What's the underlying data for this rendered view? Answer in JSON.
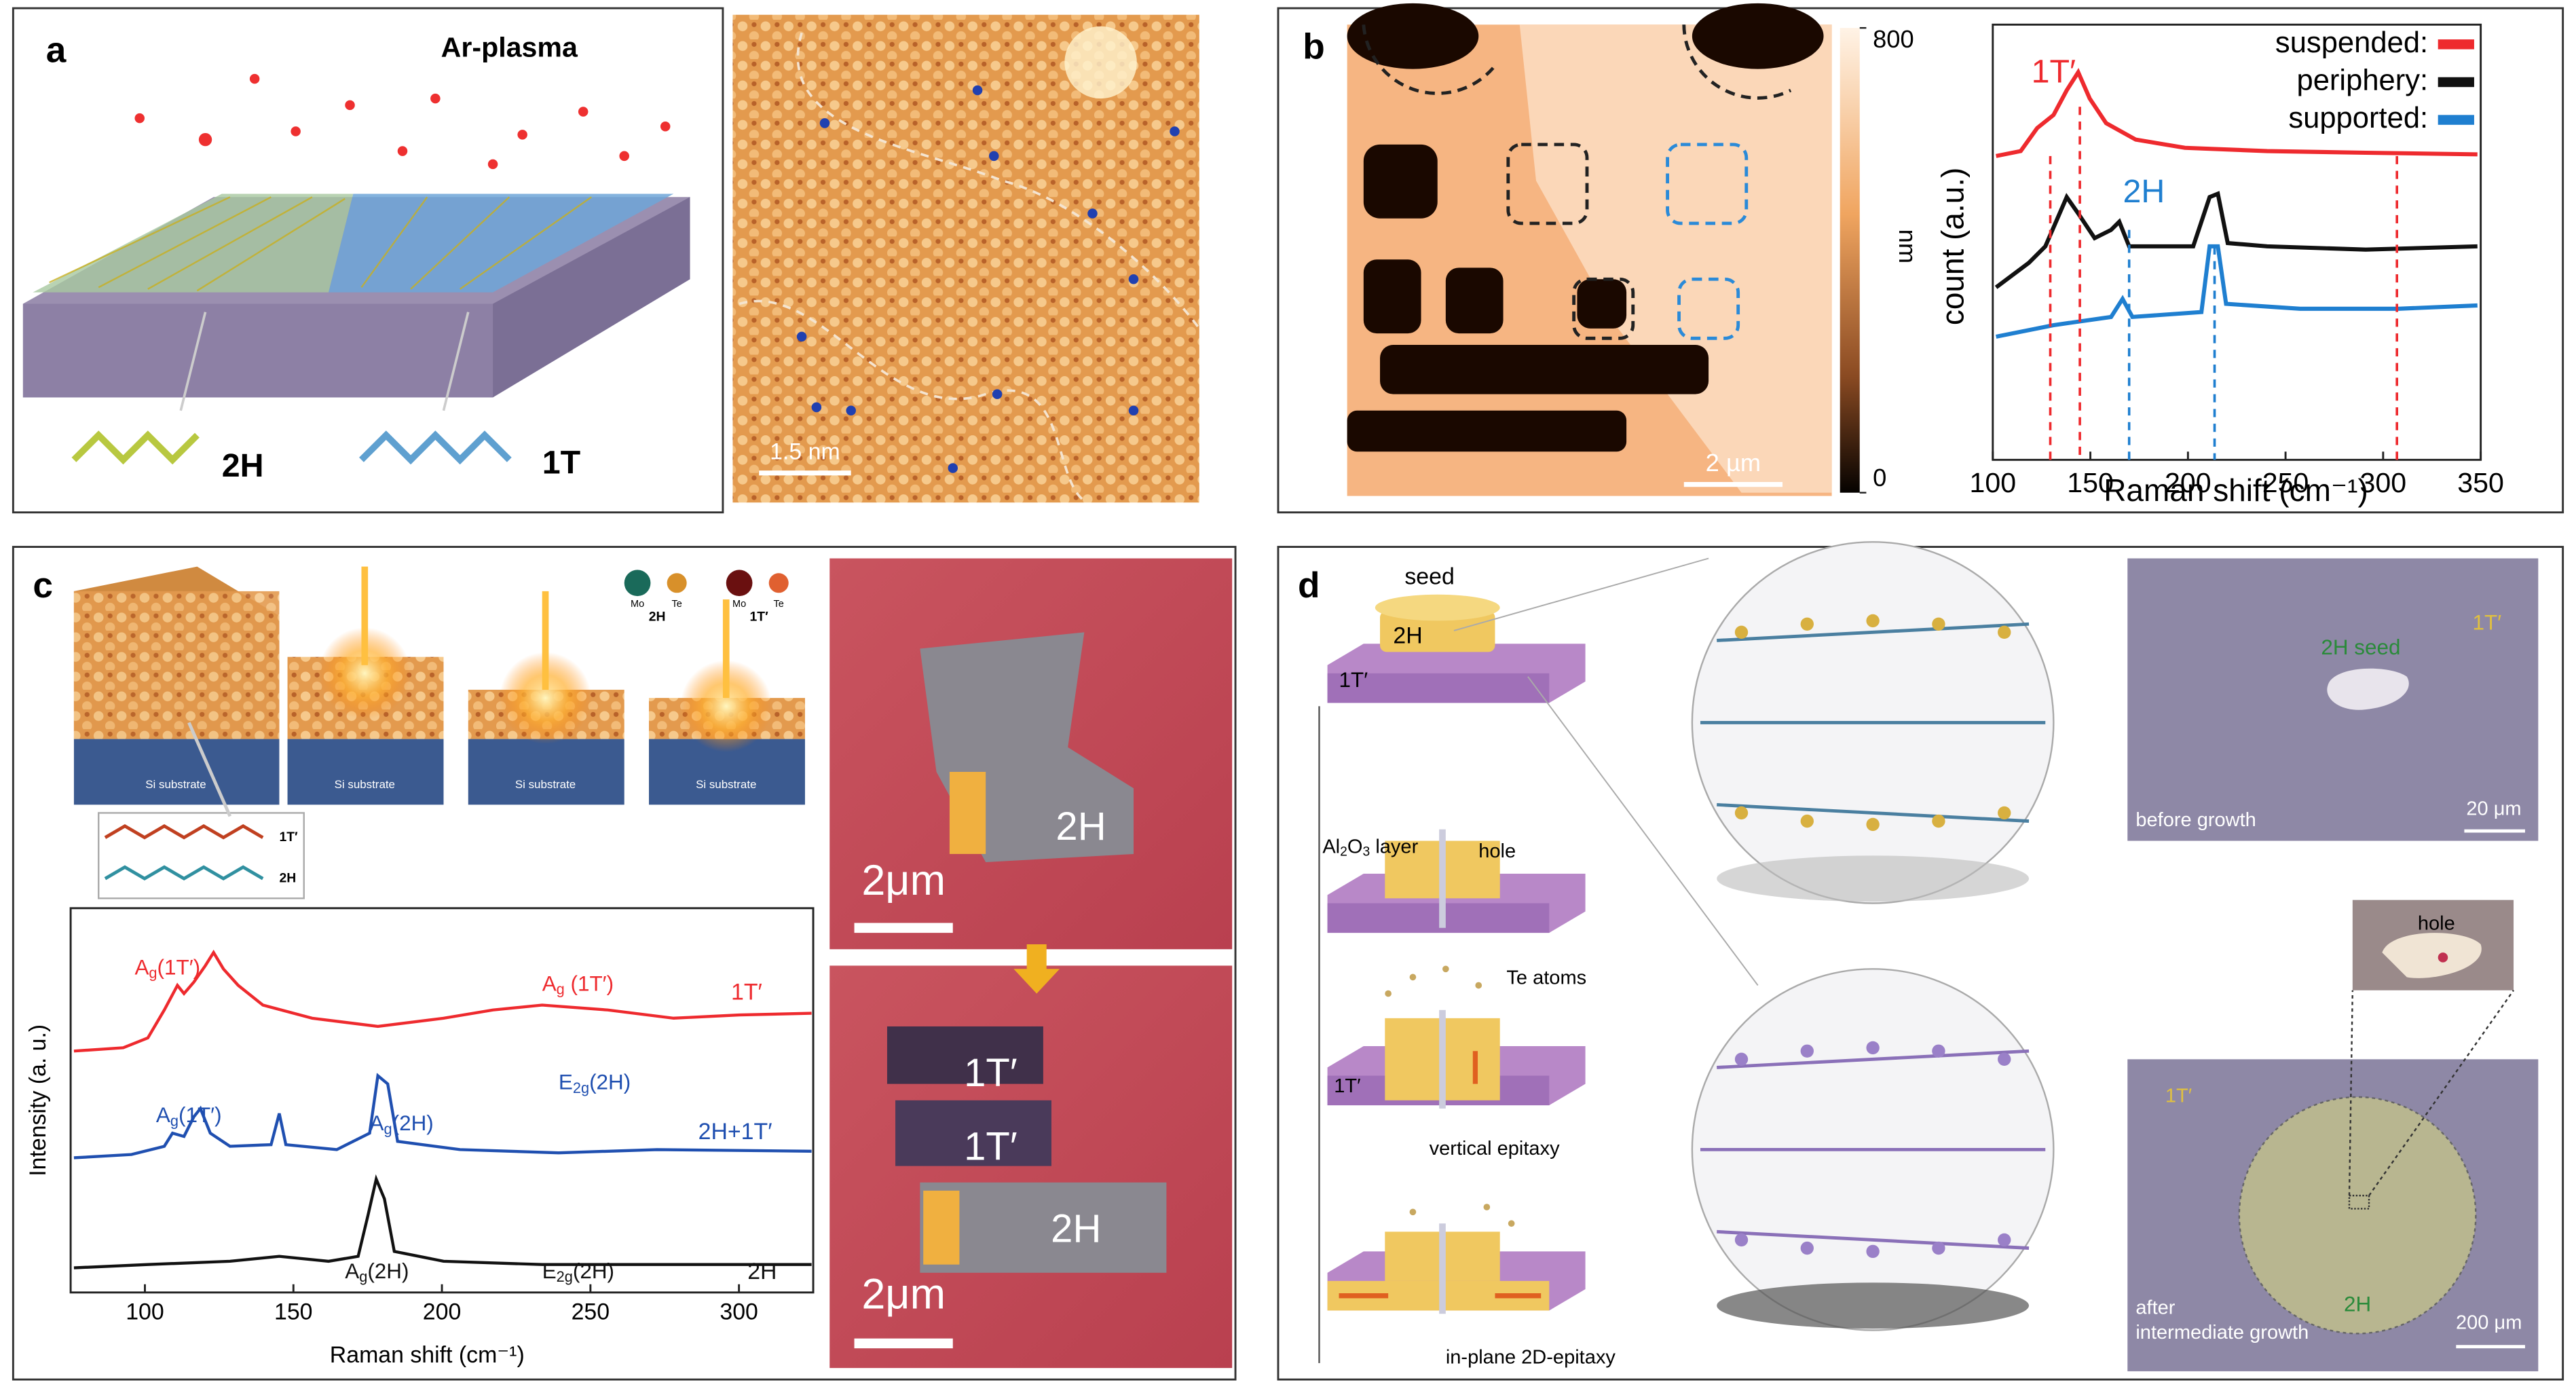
{
  "panel_a": {
    "label": "a",
    "title": "Ar-plasma",
    "phase_left": "2H",
    "phase_right": "1T",
    "scale_bar": "1.5 nm"
  },
  "panel_b": {
    "label": "b",
    "scale_bar": "2 µm",
    "colorbar": {
      "label": "nm",
      "lim": [
        0,
        800
      ],
      "ticks": [
        0,
        800
      ]
    },
    "spectrum": {
      "ylabel": "count (a.u.)",
      "xlabel": "Raman shift (cm⁻¹)",
      "xlim": [
        100,
        350
      ],
      "xticks": [
        100,
        150,
        200,
        250,
        300,
        350
      ],
      "legend": [
        {
          "name": "suspended:",
          "color": "#ee2a2e"
        },
        {
          "name": "periphery:",
          "color": "#111111"
        },
        {
          "name": "supported:",
          "color": "#1f7fd0"
        }
      ],
      "peak_labels": [
        "1T′",
        "2H"
      ]
    }
  },
  "panel_c": {
    "label": "c",
    "inset": {
      "legend": [
        "Mo",
        "Te",
        "2H",
        "Mo",
        "Te",
        "1T′"
      ],
      "substrate": [
        "Si substrate",
        "Si substrate",
        "Si substrate",
        "Si substrate"
      ],
      "layers": [
        "1T′",
        "2H"
      ]
    },
    "spectrum": {
      "ylabel": "Intensity (a. u.)",
      "xlabel": "Raman shift (cm⁻¹)",
      "xlim": [
        75,
        325
      ],
      "xticks": [
        100,
        150,
        200,
        250,
        300
      ],
      "series_labels": [
        "1T′",
        "2H+1T′",
        "2H"
      ],
      "peak_labels": [
        {
          "main": "A",
          "sub": "g",
          "rest": "(1T′)"
        },
        {
          "main": "A",
          "sub": "g",
          "rest": " (1T′)"
        },
        {
          "main": "A",
          "sub": "g",
          "rest": "(1T′)"
        },
        {
          "main": "A",
          "sub": "g",
          "rest": "(2H)"
        },
        {
          "main": "E",
          "sub": "2g",
          "rest": "(2H)"
        },
        {
          "main": "A",
          "sub": "g",
          "rest": "(2H)"
        },
        {
          "main": "E",
          "sub": "2g",
          "rest": "(2H)"
        }
      ]
    },
    "images": {
      "top": {
        "scale_bar": "2μm",
        "label": "2H"
      },
      "bottom": {
        "scale_bar": "2μm",
        "labels": [
          "1T′",
          "1T′",
          "2H"
        ]
      }
    }
  },
  "panel_d": {
    "label": "d",
    "schematic": {
      "seed": "seed",
      "seed_phase": "2H",
      "film_phase": "1T′",
      "layer": {
        "main": "Al",
        "sub1": "2",
        "mid": "O",
        "sub2": "3",
        "rest": " layer"
      },
      "hole": "hole",
      "atoms": "Te atoms",
      "film_phase_2": "1T′",
      "step3": "vertical epitaxy",
      "step4": "in-plane 2D-epitaxy"
    },
    "micrograph_top": {
      "seed": "2H seed",
      "film": "1T′",
      "caption": "before growth",
      "scale_bar": "20 μm"
    },
    "micrograph_inset": {
      "label": "hole"
    },
    "micrograph_bottom": {
      "film": "1T′",
      "domain": "2H",
      "caption": [
        "after",
        "intermediate growth"
      ],
      "scale_bar": "200 μm"
    }
  }
}
